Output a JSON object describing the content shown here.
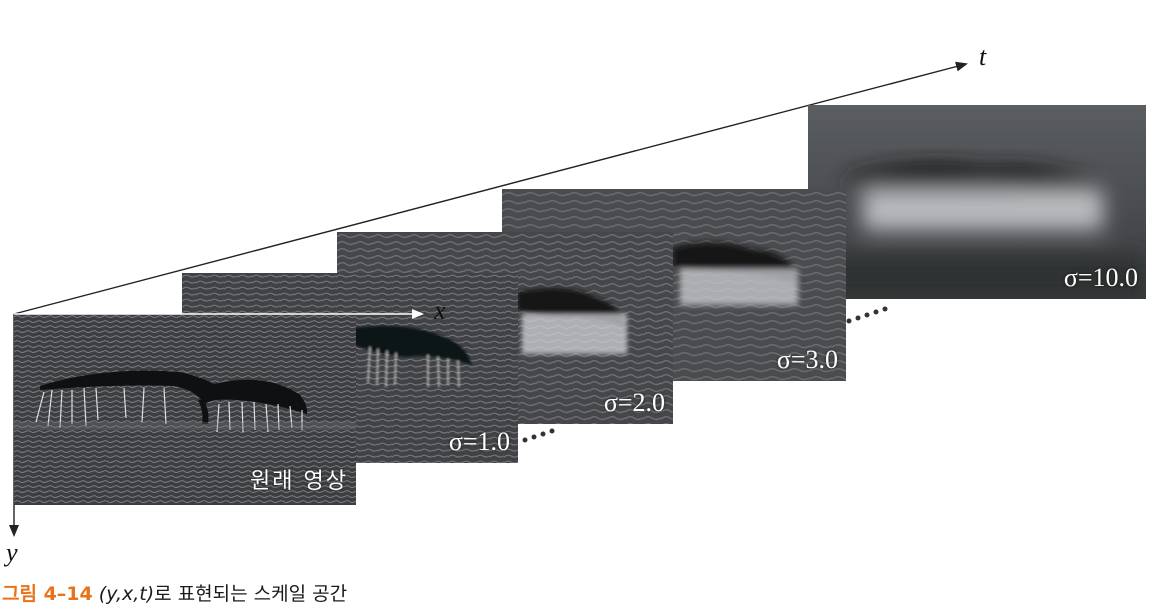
{
  "axes": {
    "t": "t",
    "x": "x",
    "y": "y"
  },
  "frames": [
    {
      "id": "sigma-10",
      "label": "σ=10.0",
      "blur": 10.0
    },
    {
      "id": "sigma-3",
      "label": "σ=3.0",
      "blur": 3.0
    },
    {
      "id": "sigma-2",
      "label": "σ=2.0",
      "blur": 2.0
    },
    {
      "id": "sigma-1",
      "label": "σ=1.0",
      "blur": 1.0
    },
    {
      "id": "original",
      "label": "원래 영상",
      "blur": 0
    }
  ],
  "caption": {
    "number": "그림 4–14",
    "vars": "(y,x,t)",
    "text": "로 표현되는 스케일 공간"
  },
  "colors": {
    "accent": "#e8731a",
    "axis": "#222222"
  }
}
